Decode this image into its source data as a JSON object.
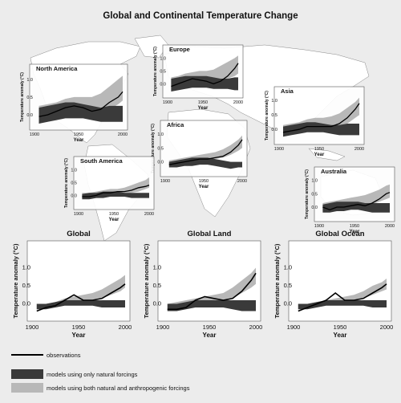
{
  "title": "Global and Continental Temperature Change",
  "legend": {
    "observations": "observations",
    "natural": "models using only natural forcings",
    "both": "models using both natural and anthropogenic forcings"
  },
  "colors": {
    "observations": "#000000",
    "natural": "#3a3a3a",
    "both": "#b8b8b8",
    "map_land": "#ffffff",
    "background": "#ececec"
  },
  "chart_data": [
    {
      "id": "north-america",
      "type": "line",
      "title": "North America",
      "xlabel": "Year",
      "ylabel": "Temperature anomaly (°C)",
      "xlim": [
        1900,
        2000
      ],
      "ylim": [
        -0.25,
        1.2
      ],
      "x": [
        1905,
        1915,
        1925,
        1935,
        1945,
        1955,
        1965,
        1975,
        1985,
        1995,
        2000
      ],
      "observations": [
        -0.05,
        0.0,
        0.1,
        0.2,
        0.25,
        0.2,
        0.1,
        0.15,
        0.35,
        0.5,
        0.65
      ],
      "natural_low": [
        -0.25,
        -0.2,
        -0.15,
        -0.1,
        -0.1,
        -0.1,
        -0.15,
        -0.2,
        -0.2,
        -0.2,
        -0.2
      ],
      "natural_high": [
        0.2,
        0.25,
        0.3,
        0.35,
        0.35,
        0.3,
        0.25,
        0.2,
        0.25,
        0.25,
        0.25
      ],
      "both_low": [
        -0.2,
        -0.15,
        -0.1,
        0.0,
        0.0,
        0.0,
        0.0,
        0.05,
        0.15,
        0.3,
        0.4
      ],
      "both_high": [
        0.25,
        0.3,
        0.35,
        0.45,
        0.5,
        0.5,
        0.5,
        0.6,
        0.8,
        1.0,
        1.1
      ]
    },
    {
      "id": "europe",
      "type": "line",
      "title": "Europe",
      "xlabel": "Year",
      "ylabel": "Temperature anomaly (°C)",
      "xlim": [
        1900,
        2000
      ],
      "ylim": [
        -0.3,
        1.2
      ],
      "x": [
        1905,
        1915,
        1925,
        1935,
        1945,
        1955,
        1965,
        1975,
        1985,
        1995,
        2000
      ],
      "observations": [
        -0.1,
        0.0,
        0.1,
        0.2,
        0.15,
        0.1,
        0.0,
        0.1,
        0.3,
        0.6,
        0.8
      ],
      "natural_low": [
        -0.3,
        -0.25,
        -0.2,
        -0.15,
        -0.15,
        -0.15,
        -0.2,
        -0.2,
        -0.2,
        -0.25,
        -0.25
      ],
      "natural_high": [
        0.2,
        0.25,
        0.3,
        0.3,
        0.3,
        0.3,
        0.25,
        0.2,
        0.2,
        0.25,
        0.25
      ],
      "both_low": [
        -0.25,
        -0.2,
        -0.1,
        -0.05,
        0.0,
        0.0,
        0.0,
        0.1,
        0.2,
        0.3,
        0.4
      ],
      "both_high": [
        0.25,
        0.3,
        0.4,
        0.45,
        0.5,
        0.5,
        0.55,
        0.7,
        0.85,
        1.0,
        1.1
      ]
    },
    {
      "id": "asia",
      "type": "line",
      "title": "Asia",
      "xlabel": "Year",
      "ylabel": "Temperature anomaly (°C)",
      "xlim": [
        1900,
        2000
      ],
      "ylim": [
        -0.3,
        1.2
      ],
      "x": [
        1905,
        1915,
        1925,
        1935,
        1945,
        1955,
        1965,
        1975,
        1985,
        1995,
        2000
      ],
      "observations": [
        -0.1,
        -0.05,
        0.0,
        0.1,
        0.1,
        0.1,
        0.1,
        0.2,
        0.4,
        0.7,
        0.9
      ],
      "natural_low": [
        -0.25,
        -0.2,
        -0.15,
        -0.1,
        -0.1,
        -0.1,
        -0.15,
        -0.2,
        -0.2,
        -0.2,
        -0.2
      ],
      "natural_high": [
        0.1,
        0.15,
        0.2,
        0.25,
        0.25,
        0.2,
        0.15,
        0.15,
        0.2,
        0.2,
        0.2
      ],
      "both_low": [
        -0.15,
        -0.1,
        -0.05,
        0.0,
        0.05,
        0.05,
        0.05,
        0.1,
        0.2,
        0.4,
        0.5
      ],
      "both_high": [
        0.15,
        0.2,
        0.25,
        0.35,
        0.4,
        0.4,
        0.45,
        0.55,
        0.75,
        0.95,
        1.1
      ]
    },
    {
      "id": "africa",
      "type": "line",
      "title": "Africa",
      "xlabel": "Year",
      "ylabel": "Temperature anomaly (°C)",
      "xlim": [
        1900,
        2000
      ],
      "ylim": [
        -0.3,
        1.2
      ],
      "x": [
        1905,
        1915,
        1925,
        1935,
        1945,
        1955,
        1965,
        1975,
        1985,
        1995,
        2000
      ],
      "observations": [
        -0.1,
        -0.05,
        0.0,
        0.05,
        0.1,
        0.1,
        0.15,
        0.2,
        0.35,
        0.6,
        0.8
      ],
      "natural_low": [
        -0.2,
        -0.2,
        -0.15,
        -0.15,
        -0.1,
        -0.1,
        -0.15,
        -0.2,
        -0.25,
        -0.2,
        -0.2
      ],
      "natural_high": [
        0.0,
        0.05,
        0.1,
        0.15,
        0.15,
        0.15,
        0.1,
        0.05,
        0.0,
        0.0,
        0.0
      ],
      "both_low": [
        -0.1,
        -0.1,
        -0.05,
        0.0,
        0.05,
        0.05,
        0.1,
        0.15,
        0.25,
        0.4,
        0.5
      ],
      "both_high": [
        0.05,
        0.1,
        0.15,
        0.2,
        0.25,
        0.3,
        0.35,
        0.45,
        0.6,
        0.8,
        0.95
      ]
    },
    {
      "id": "south-america",
      "type": "line",
      "title": "South America",
      "xlabel": "Year",
      "ylabel": "Temperature anomaly (°C)",
      "xlim": [
        1900,
        2000
      ],
      "ylim": [
        -0.3,
        1.2
      ],
      "x": [
        1905,
        1915,
        1925,
        1935,
        1945,
        1955,
        1965,
        1975,
        1985,
        1995,
        2000
      ],
      "observations": [
        -0.05,
        -0.05,
        0.0,
        0.1,
        0.1,
        0.15,
        0.15,
        0.2,
        0.3,
        0.35,
        0.4
      ],
      "natural_low": [
        -0.15,
        -0.15,
        -0.1,
        -0.1,
        -0.05,
        -0.05,
        -0.05,
        -0.1,
        -0.1,
        -0.1,
        -0.1
      ],
      "natural_high": [
        0.05,
        0.1,
        0.1,
        0.15,
        0.15,
        0.15,
        0.1,
        0.1,
        0.1,
        0.1,
        0.1
      ],
      "both_low": [
        -0.1,
        -0.1,
        -0.05,
        0.0,
        0.0,
        0.05,
        0.05,
        0.1,
        0.15,
        0.25,
        0.3
      ],
      "both_high": [
        0.1,
        0.1,
        0.15,
        0.2,
        0.25,
        0.25,
        0.3,
        0.4,
        0.5,
        0.6,
        0.7
      ]
    },
    {
      "id": "australia",
      "type": "line",
      "title": "Australia",
      "xlabel": "Year",
      "ylabel": "Temperature anomaly (°C)",
      "xlim": [
        1900,
        2000
      ],
      "ylim": [
        -0.3,
        1.2
      ],
      "x": [
        1905,
        1915,
        1925,
        1935,
        1945,
        1955,
        1965,
        1975,
        1985,
        1995,
        2000
      ],
      "observations": [
        0.0,
        -0.1,
        0.0,
        0.0,
        0.05,
        0.1,
        0.05,
        0.15,
        0.3,
        0.5,
        0.55
      ],
      "natural_low": [
        -0.2,
        -0.2,
        -0.15,
        -0.15,
        -0.1,
        -0.1,
        -0.15,
        -0.2,
        -0.2,
        -0.2,
        -0.2
      ],
      "natural_high": [
        0.1,
        0.15,
        0.2,
        0.2,
        0.2,
        0.2,
        0.15,
        0.15,
        0.15,
        0.15,
        0.15
      ],
      "both_low": [
        -0.15,
        -0.1,
        -0.05,
        0.0,
        0.0,
        0.05,
        0.05,
        0.1,
        0.2,
        0.3,
        0.35
      ],
      "both_high": [
        0.15,
        0.2,
        0.25,
        0.3,
        0.35,
        0.4,
        0.45,
        0.55,
        0.65,
        0.8,
        0.85
      ]
    },
    {
      "id": "global",
      "type": "line",
      "title": "Global",
      "xlabel": "Year",
      "ylabel": "Temperature anomaly (°C)",
      "xlim": [
        1900,
        2000
      ],
      "ylim": [
        -0.3,
        1.3
      ],
      "x": [
        1905,
        1915,
        1925,
        1935,
        1945,
        1955,
        1965,
        1975,
        1985,
        1995,
        2000
      ],
      "observations": [
        -0.2,
        -0.1,
        -0.05,
        0.1,
        0.25,
        0.1,
        0.1,
        0.15,
        0.3,
        0.45,
        0.55
      ],
      "natural_low": [
        -0.15,
        -0.15,
        -0.1,
        -0.05,
        -0.05,
        -0.05,
        -0.05,
        -0.1,
        -0.1,
        -0.1,
        -0.1
      ],
      "natural_high": [
        0.0,
        0.0,
        0.05,
        0.1,
        0.1,
        0.1,
        0.1,
        0.1,
        0.1,
        0.1,
        0.1
      ],
      "both_low": [
        -0.15,
        -0.1,
        -0.05,
        0.0,
        0.05,
        0.05,
        0.1,
        0.15,
        0.25,
        0.35,
        0.45
      ],
      "both_high": [
        0.0,
        0.0,
        0.05,
        0.15,
        0.2,
        0.25,
        0.3,
        0.4,
        0.55,
        0.7,
        0.8
      ]
    },
    {
      "id": "global-land",
      "type": "line",
      "title": "Global Land",
      "xlabel": "Year",
      "ylabel": "Temperature anomaly (°C)",
      "xlim": [
        1900,
        2000
      ],
      "ylim": [
        -0.3,
        1.3
      ],
      "x": [
        1905,
        1915,
        1925,
        1935,
        1945,
        1955,
        1965,
        1975,
        1985,
        1995,
        2000
      ],
      "observations": [
        -0.15,
        -0.15,
        -0.1,
        0.1,
        0.2,
        0.15,
        0.1,
        0.15,
        0.35,
        0.65,
        0.85
      ],
      "natural_low": [
        -0.2,
        -0.2,
        -0.15,
        -0.1,
        -0.1,
        -0.1,
        -0.1,
        -0.15,
        -0.2,
        -0.2,
        -0.2
      ],
      "natural_high": [
        0.0,
        0.0,
        0.05,
        0.1,
        0.1,
        0.1,
        0.1,
        0.1,
        0.1,
        0.1,
        0.1
      ],
      "both_low": [
        -0.2,
        -0.15,
        -0.1,
        0.0,
        0.05,
        0.05,
        0.05,
        0.15,
        0.3,
        0.45,
        0.55
      ],
      "both_high": [
        0.0,
        0.05,
        0.1,
        0.15,
        0.2,
        0.25,
        0.3,
        0.45,
        0.65,
        0.85,
        1.0
      ]
    },
    {
      "id": "global-ocean",
      "type": "line",
      "title": "Global Ocean",
      "xlabel": "Year",
      "ylabel": "Temperature anomaly (°C)",
      "xlim": [
        1900,
        2000
      ],
      "ylim": [
        -0.3,
        1.3
      ],
      "x": [
        1905,
        1915,
        1925,
        1935,
        1945,
        1955,
        1965,
        1975,
        1985,
        1995,
        2000
      ],
      "observations": [
        -0.2,
        -0.1,
        0.0,
        0.1,
        0.3,
        0.1,
        0.1,
        0.15,
        0.3,
        0.45,
        0.55
      ],
      "natural_low": [
        -0.15,
        -0.15,
        -0.1,
        -0.05,
        -0.05,
        -0.05,
        -0.05,
        -0.05,
        -0.1,
        -0.1,
        -0.1
      ],
      "natural_high": [
        0.0,
        0.0,
        0.05,
        0.1,
        0.1,
        0.1,
        0.1,
        0.1,
        0.1,
        0.1,
        0.1
      ],
      "both_low": [
        -0.15,
        -0.1,
        -0.05,
        0.0,
        0.05,
        0.05,
        0.1,
        0.15,
        0.25,
        0.35,
        0.4
      ],
      "both_high": [
        0.0,
        0.0,
        0.05,
        0.1,
        0.15,
        0.2,
        0.25,
        0.35,
        0.5,
        0.6,
        0.7
      ]
    }
  ]
}
